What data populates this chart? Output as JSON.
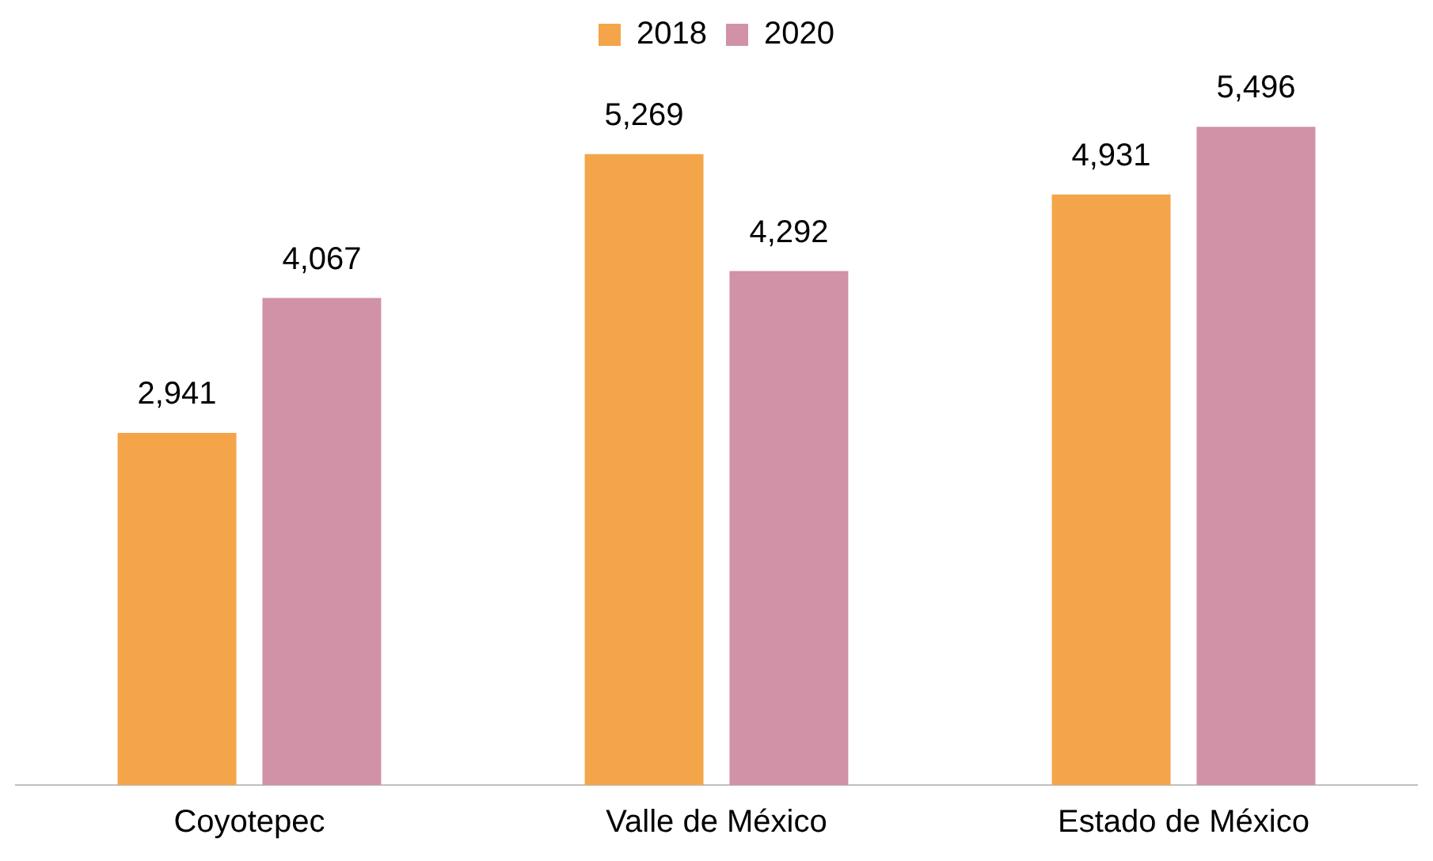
{
  "chart_data": {
    "type": "bar",
    "categories": [
      "Coyotepec",
      "Valle de México",
      "Estado de México"
    ],
    "series": [
      {
        "name": "2018",
        "color": "#f4a54a",
        "values": [
          2941,
          5269,
          4931
        ],
        "value_labels": [
          "2,941",
          "5,269",
          "4,931"
        ]
      },
      {
        "name": "2020",
        "color": "#d191a6",
        "values": [
          4067,
          4292,
          5496
        ],
        "value_labels": [
          "4,067",
          "4,292",
          "5,496"
        ]
      }
    ],
    "legend": "top",
    "grid": false
  }
}
